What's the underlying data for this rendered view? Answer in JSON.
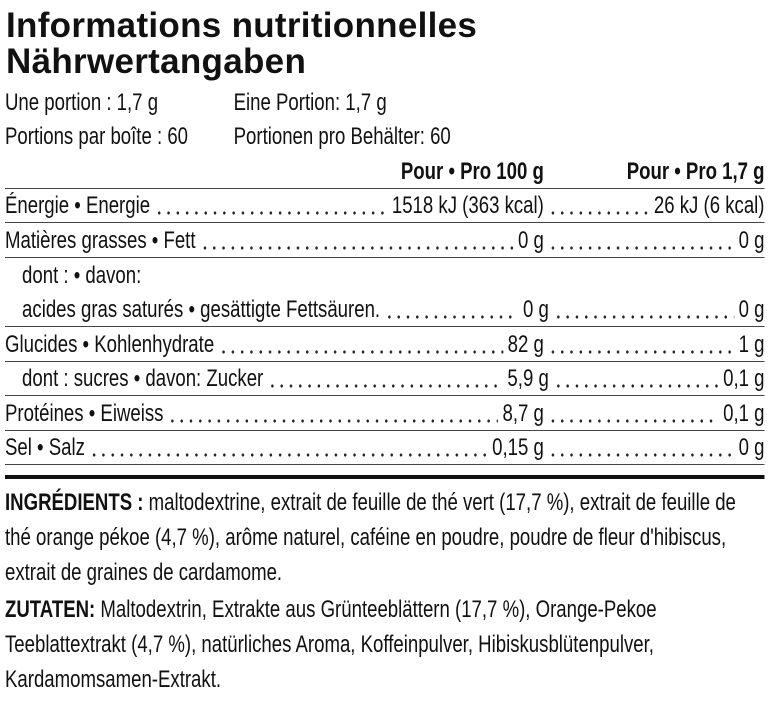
{
  "title": {
    "fr": "Informations nutritionnelles",
    "de": "Nährwertangaben"
  },
  "serving": [
    [
      "Une portion : 1,7 g",
      "Eine Portion: 1,7 g"
    ],
    [
      "Portions par boîte : 60",
      "Portionen pro Behälter: 60"
    ]
  ],
  "table": {
    "header": [
      "Pour • Pro 100 g",
      "Pour • Pro 1,7 g"
    ],
    "rows": [
      [
        "Énergie • Energie",
        "1518 kJ (363 kcal)",
        "26 kJ (6 kcal)"
      ],
      [
        "Matières grasses • Fett",
        "0 g",
        "0 g"
      ],
      [
        "dont : • davon:"
      ],
      [
        "acides gras saturés • gesättigte Fettsäuren.",
        "0 g",
        "0 g"
      ],
      [
        "Glucides • Kohlenhydrate",
        "82 g",
        "1 g"
      ],
      [
        "dont : sucres • davon: Zucker",
        "5,9 g",
        "0,1 g"
      ],
      [
        "Protéines • Eiweiss",
        "8,7 g",
        "0,1 g"
      ],
      [
        "Sel • Salz",
        "0,15 g",
        "0 g"
      ]
    ]
  },
  "ingredients": {
    "fr": {
      "label": "INGRÉDIENTS :",
      "text": "maltodextrine, extrait de feuille de thé vert (17,7 %), extrait de feuille de thé orange pékoe (4,7 %), arôme naturel, caféine en poudre, poudre de fleur d'hibiscus, extrait de graines de cardamome."
    },
    "de": {
      "label": "ZUTATEN:",
      "text": "Maltodextrin, Extrakte aus Grünteeblättern (17,7 %), Orange-Pekoe Teeblattextrakt (4,7 %), natürliches Aroma, Koffeinpulver, Hibiskusblütenpulver, Kardamomsamen-Extrakt."
    }
  }
}
